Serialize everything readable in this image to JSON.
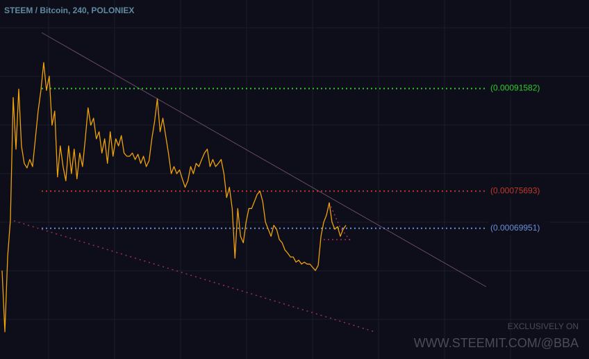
{
  "chart_data": {
    "type": "line",
    "title": "STEEM / Bitcoin, 240, POLONIEX",
    "color": "#f0a30a",
    "ylim": [
      0.000497,
      0.001053
    ],
    "values": [
      0.000634,
      0.000539,
      0.000655,
      0.000713,
      0.000902,
      0.000822,
      0.000915,
      0.000827,
      0.0008,
      0.000793,
      0.000806,
      0.000795,
      0.000838,
      0.000881,
      0.000913,
      0.000956,
      0.000913,
      0.000935,
      0.000859,
      0.000881,
      0.000779,
      0.000827,
      0.000795,
      0.000773,
      0.000827,
      0.000784,
      0.000822,
      0.000776,
      0.000816,
      0.000795,
      0.000838,
      0.000886,
      0.000859,
      0.00087,
      0.000838,
      0.000849,
      0.000816,
      0.000838,
      0.0008,
      0.000849,
      0.000811,
      0.000838,
      0.000827,
      0.000843,
      0.000816,
      0.000811,
      0.000811,
      0.000816,
      0.000806,
      0.000814,
      0.0008,
      0.000811,
      0.000795,
      0.000804,
      0.000838,
      0.000865,
      0.0009,
      0.000849,
      0.00087,
      0.000843,
      0.000816,
      0.000784,
      0.000795,
      0.000784,
      0.00079,
      0.000776,
      0.000763,
      0.000773,
      0.000795,
      0.000784,
      0.0008,
      0.000795,
      0.000806,
      0.000816,
      0.000822,
      0.000795,
      0.000806,
      0.000795,
      0.0008,
      0.000806,
      0.000784,
      0.000747,
      0.000763,
      0.00073,
      0.000653,
      0.00073,
      0.000687,
      0.000677,
      0.000709,
      0.00073,
      0.00073,
      0.000741,
      0.000752,
      0.000757,
      0.000741,
      0.000709,
      0.000698,
      0.000687,
      0.000704,
      0.000698,
      0.000682,
      0.000677,
      0.000666,
      0.000661,
      0.000655,
      0.000655,
      0.000647,
      0.00065,
      0.000644,
      0.000647,
      0.000644,
      0.000644,
      0.000639,
      0.000634,
      0.000642,
      0.000687,
      0.000709,
      0.00072,
      0.000739,
      0.000709,
      0.000698,
      0.000702,
      0.000687,
      0.000698,
      0.000704
    ],
    "levels": [
      {
        "value": 0.00091582,
        "label": "(0.00091582)",
        "color": "#2ecc2e"
      },
      {
        "value": 0.00075693,
        "label": "(0.00075693)",
        "color": "#c0392b"
      },
      {
        "value": 0.00069951,
        "label": "(0.00069951)",
        "color": "#6a8fd8"
      }
    ],
    "annotations": [
      "EXCLUSIVELY ON",
      "WWW.STEEMIT.COM/@BBA"
    ]
  }
}
